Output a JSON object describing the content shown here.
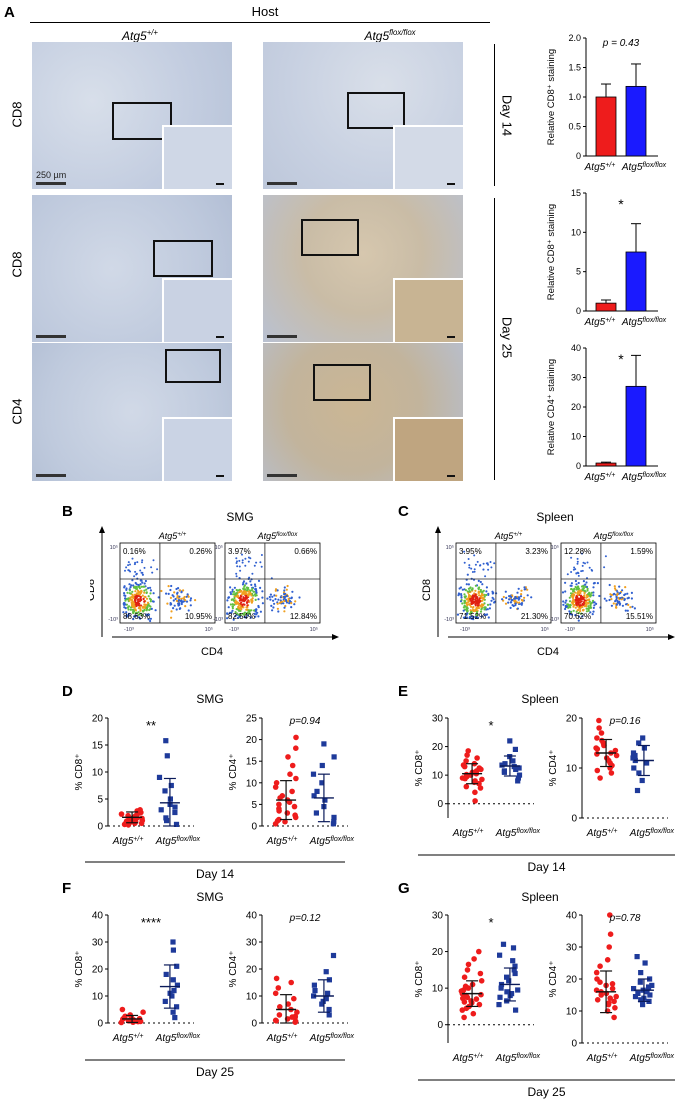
{
  "panelA": {
    "letter": "A",
    "host_label": "Host",
    "columns": [
      "Atg5+/+",
      "Atg5flox/flox"
    ],
    "rows": [
      {
        "stain": "CD8",
        "day": "Day 14"
      },
      {
        "stain": "CD8",
        "day": "Day 25"
      },
      {
        "stain": "CD4",
        "day": "Day 25"
      }
    ],
    "scale_label": "250 µm",
    "colors": {
      "wt": "#ee1c1c",
      "ko": "#1a1aff",
      "tissue": "#c9d3e3",
      "stain": "#7a4a1e"
    }
  },
  "panelA_bars": {
    "charts": [
      {
        "ylabel": "Relative CD8⁺ staining",
        "annotation": "p = 0.43",
        "ylim": [
          0,
          2.0
        ],
        "yticks": [
          "0",
          "0.5",
          "1.0",
          "1.5",
          "2.0"
        ],
        "categories": [
          "Atg5+/+",
          "Atg5flox/flox"
        ],
        "values": [
          1.0,
          1.18
        ],
        "errors": [
          0.22,
          0.38
        ]
      },
      {
        "ylabel": "Relative CD8⁺ staining",
        "annotation": "*",
        "ylim": [
          0,
          15
        ],
        "yticks": [
          "0",
          "5",
          "10",
          "15"
        ],
        "categories": [
          "Atg5+/+",
          "Atg5flox/flox"
        ],
        "values": [
          1.0,
          7.5
        ],
        "errors": [
          0.4,
          3.6
        ]
      },
      {
        "ylabel": "Relative CD4⁺ staining",
        "annotation": "*",
        "ylim": [
          0,
          40
        ],
        "yticks": [
          "0",
          "10",
          "20",
          "30",
          "40"
        ],
        "categories": [
          "Atg5+/+",
          "Atg5flox/flox"
        ],
        "values": [
          1.0,
          27
        ],
        "errors": [
          0.3,
          10.5
        ]
      }
    ]
  },
  "panelB": {
    "letter": "B",
    "title": "SMG",
    "genotypes": [
      "Atg5+/+",
      "Atg5flox/flox"
    ],
    "quadrants": [
      [
        "0.16%",
        "0.26%",
        "88.63%",
        "10.95%"
      ],
      [
        "3.97%",
        "0.66%",
        "82.54%",
        "12.84%"
      ]
    ],
    "xlabel": "CD4",
    "ylabel": "CD8"
  },
  "panelC": {
    "letter": "C",
    "title": "Spleen",
    "genotypes": [
      "Atg5+/+",
      "Atg5flox/flox"
    ],
    "quadrants": [
      [
        "3.95%",
        "3.23%",
        "71.52%",
        "21.30%"
      ],
      [
        "12.28%",
        "1.59%",
        "70.62%",
        "15.51%"
      ]
    ],
    "xlabel": "CD4",
    "ylabel": "CD8"
  },
  "chart_data": [
    {
      "type": "scatter",
      "panel": "D",
      "title": "SMG",
      "ylabel": "% CD8⁺",
      "annotation": "**",
      "ylim": [
        0,
        20
      ],
      "yticks": [
        "0",
        "5",
        "10",
        "15",
        "20"
      ],
      "categories": [
        "Atg5+/+",
        "Atg5flox/flox"
      ],
      "series": [
        {
          "name": "Atg5+/+",
          "values": [
            0.2,
            0.4,
            0.5,
            0.6,
            0.8,
            0.9,
            1.0,
            1.1,
            1.2,
            1.3,
            1.4,
            1.5,
            1.6,
            1.8,
            2.0,
            2.2,
            2.5,
            2.8,
            3.0,
            0.3,
            0.7,
            1.9,
            2.4,
            0.5
          ],
          "mean": 1.6,
          "sd": 1.0
        },
        {
          "name": "Atg5flox/flox",
          "values": [
            0.3,
            1.0,
            1.5,
            2.5,
            3.0,
            3.5,
            4.0,
            5.0,
            6.5,
            7.5,
            9.0,
            13.0,
            15.8
          ],
          "mean": 4.3,
          "sd": 4.5
        }
      ],
      "xlabel": "Day 14"
    },
    {
      "type": "scatter",
      "panel": "D",
      "title": "",
      "ylabel": "% CD4⁺",
      "annotation": "p=0.94",
      "ylim": [
        0,
        25
      ],
      "yticks": [
        "0",
        "5",
        "10",
        "15",
        "20",
        "25"
      ],
      "categories": [
        "Atg5+/+",
        "Atg5flox/flox"
      ],
      "series": [
        {
          "name": "Atg5+/+",
          "values": [
            0.5,
            1.0,
            1.5,
            2.0,
            2.5,
            3.0,
            3.5,
            4.0,
            4.5,
            5.0,
            5.5,
            6.0,
            7.0,
            8.0,
            9.0,
            10.0,
            11.0,
            12.0,
            14.0,
            16.0,
            18.0,
            20.5,
            1.2,
            6.5
          ],
          "mean": 6.0,
          "sd": 4.5
        },
        {
          "name": "Atg5flox/flox",
          "values": [
            0.5,
            1.0,
            2.0,
            3.0,
            4.5,
            6.0,
            7.0,
            8.0,
            10.0,
            12.0,
            14.0,
            16.0,
            19.0
          ],
          "mean": 6.5,
          "sd": 5.5
        }
      ],
      "xlabel": "Day 14"
    },
    {
      "type": "scatter",
      "panel": "E",
      "title": "Spleen",
      "ylabel": "% CD8⁺",
      "annotation": "*",
      "ylim": [
        -5,
        30
      ],
      "yticks": [
        "0",
        "10",
        "20",
        "30"
      ],
      "categories": [
        "Atg5+/+",
        "Atg5flox/flox"
      ],
      "series": [
        {
          "name": "Atg5+/+",
          "values": [
            1.0,
            4.0,
            5.5,
            6.0,
            7.0,
            7.5,
            8.0,
            8.5,
            9.0,
            9.5,
            10.0,
            10.5,
            11.0,
            11.5,
            12.0,
            12.5,
            13.0,
            13.5,
            14.0,
            15.0,
            16.0,
            17.0,
            18.5,
            8.8,
            10.2
          ],
          "mean": 10.5,
          "sd": 3.5
        },
        {
          "name": "Atg5flox/flox",
          "values": [
            8.0,
            9.0,
            10.0,
            11.0,
            11.5,
            12.0,
            12.5,
            13.0,
            13.5,
            14.0,
            15.0,
            16.5,
            19.0,
            22.0
          ],
          "mean": 13.2,
          "sd": 3.5
        }
      ],
      "xlabel": "Day 14"
    },
    {
      "type": "scatter",
      "panel": "E",
      "title": "",
      "ylabel": "% CD4⁺",
      "annotation": "p=0.16",
      "ylim": [
        0,
        20
      ],
      "yticks": [
        "0",
        "10",
        "20"
      ],
      "categories": [
        "Atg5+/+",
        "Atg5flox/flox"
      ],
      "series": [
        {
          "name": "Atg5+/+",
          "values": [
            8.0,
            9.0,
            10.0,
            10.5,
            11.0,
            11.5,
            12.0,
            12.5,
            13.0,
            13.5,
            14.0,
            14.5,
            15.0,
            15.5,
            16.0,
            17.0,
            18.0,
            19.5,
            9.5,
            12.8,
            13.8
          ],
          "mean": 13.0,
          "sd": 2.7
        },
        {
          "name": "Atg5flox/flox",
          "values": [
            5.5,
            7.5,
            9.0,
            10.0,
            11.0,
            11.5,
            12.0,
            12.5,
            13.0,
            14.0,
            15.0,
            16.0
          ],
          "mean": 11.5,
          "sd": 3.0
        }
      ],
      "xlabel": "Day 14"
    },
    {
      "type": "scatter",
      "panel": "F",
      "title": "SMG",
      "ylabel": "% CD8⁺",
      "annotation": "****",
      "ylim": [
        0,
        40
      ],
      "yticks": [
        "0",
        "10",
        "20",
        "30",
        "40"
      ],
      "categories": [
        "Atg5+/+",
        "Atg5flox/flox"
      ],
      "series": [
        {
          "name": "Atg5+/+",
          "values": [
            0.2,
            0.3,
            0.5,
            0.6,
            0.8,
            1.0,
            1.2,
            1.4,
            1.6,
            2.0,
            2.5,
            3.0,
            4.0,
            5.0,
            0.4,
            0.9,
            1.8
          ],
          "mean": 1.5,
          "sd": 1.3
        },
        {
          "name": "Atg5flox/flox",
          "values": [
            2.0,
            4.0,
            6.0,
            8.0,
            10.0,
            11.0,
            12.0,
            14.0,
            16.0,
            18.0,
            21.0,
            27.0,
            30.0
          ],
          "mean": 13.5,
          "sd": 8.0
        }
      ],
      "xlabel": "Day 25"
    },
    {
      "type": "scatter",
      "panel": "F",
      "title": "",
      "ylabel": "% CD4⁺",
      "annotation": "p=0.12",
      "ylim": [
        0,
        40
      ],
      "yticks": [
        "0",
        "10",
        "20",
        "30",
        "40"
      ],
      "categories": [
        "Atg5+/+",
        "Atg5flox/flox"
      ],
      "series": [
        {
          "name": "Atg5+/+",
          "values": [
            0.3,
            0.6,
            1.0,
            1.5,
            2.0,
            2.5,
            3.0,
            4.0,
            5.0,
            6.0,
            7.0,
            9.0,
            11.0,
            13.0,
            15.0,
            16.5,
            0.8,
            2.2
          ],
          "mean": 5.0,
          "sd": 5.5
        },
        {
          "name": "Atg5flox/flox",
          "values": [
            3.0,
            5.0,
            7.0,
            8.0,
            9.0,
            10.0,
            11.0,
            12.0,
            14.0,
            16.0,
            19.0,
            25.0
          ],
          "mean": 10.0,
          "sd": 6.0
        }
      ],
      "xlabel": "Day 25"
    },
    {
      "type": "scatter",
      "panel": "G",
      "title": "Spleen",
      "ylabel": "% CD8⁺",
      "annotation": "*",
      "ylim": [
        -5,
        30
      ],
      "yticks": [
        "0",
        "10",
        "20",
        "30"
      ],
      "categories": [
        "Atg5+/+",
        "Atg5flox/flox"
      ],
      "series": [
        {
          "name": "Atg5+/+",
          "values": [
            2.0,
            3.0,
            4.0,
            4.5,
            5.0,
            5.5,
            6.0,
            6.5,
            7.0,
            7.5,
            8.0,
            8.5,
            9.0,
            9.5,
            10.0,
            10.5,
            11.0,
            12.0,
            13.0,
            14.0,
            15.0,
            16.5,
            18.0,
            20.0,
            6.2,
            7.2,
            8.2,
            9.2
          ],
          "mean": 8.5,
          "sd": 3.5
        },
        {
          "name": "Atg5flox/flox",
          "values": [
            4.0,
            5.5,
            6.5,
            7.5,
            8.0,
            8.5,
            9.0,
            9.5,
            10.0,
            11.0,
            12.0,
            13.0,
            14.0,
            15.0,
            16.0,
            17.5,
            19.0,
            21.0,
            22.0
          ],
          "mean": 11.0,
          "sd": 4.5
        }
      ],
      "xlabel": "Day 25"
    },
    {
      "type": "scatter",
      "panel": "G",
      "title": "",
      "ylabel": "% CD4⁺",
      "annotation": "p=0.78",
      "ylim": [
        0,
        40
      ],
      "yticks": [
        "0",
        "10",
        "20",
        "30",
        "40"
      ],
      "categories": [
        "Atg5+/+",
        "Atg5flox/flox"
      ],
      "series": [
        {
          "name": "Atg5+/+",
          "values": [
            8.0,
            10.0,
            11.0,
            12.0,
            13.0,
            13.5,
            14.0,
            14.5,
            15.0,
            15.5,
            16.0,
            17.0,
            18.0,
            19.0,
            20.0,
            22.0,
            24.0,
            26.0,
            30.0,
            34.0,
            40.0,
            12.5,
            16.5,
            18.5
          ],
          "mean": 16.0,
          "sd": 6.5
        },
        {
          "name": "Atg5flox/flox",
          "values": [
            12.0,
            13.0,
            13.5,
            14.0,
            14.5,
            15.0,
            15.5,
            16.0,
            16.5,
            17.0,
            17.5,
            18.0,
            19.0,
            20.0,
            22.0,
            25.0,
            27.0
          ],
          "mean": 16.5,
          "sd": 3.5
        }
      ],
      "xlabel": "Day 25"
    }
  ],
  "panel_titles": {
    "D": {
      "letter": "D",
      "title": "SMG",
      "day": "Day 14"
    },
    "E": {
      "letter": "E",
      "title": "Spleen",
      "day": "Day 14"
    },
    "F": {
      "letter": "F",
      "title": "SMG",
      "day": "Day 25"
    },
    "G": {
      "letter": "G",
      "title": "Spleen",
      "day": "Day 25"
    }
  }
}
